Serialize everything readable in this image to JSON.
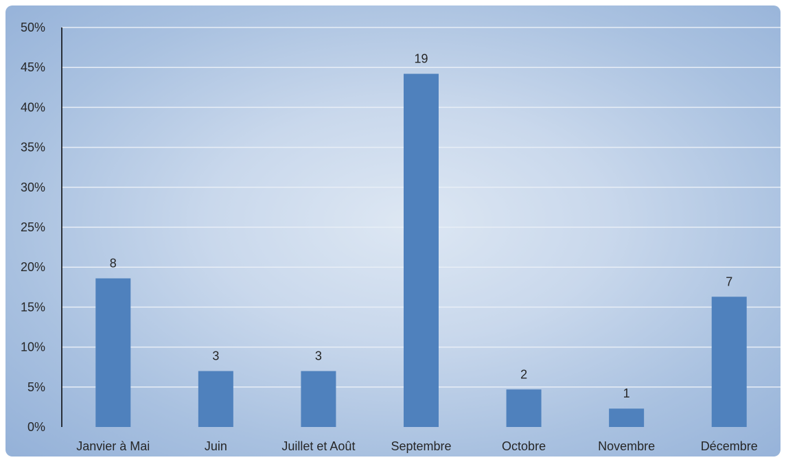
{
  "chart_data": {
    "type": "bar",
    "categories": [
      "Janvier à Mai",
      "Juin",
      "Juillet et Août",
      "Septembre",
      "Octobre",
      "Novembre",
      "Décembre"
    ],
    "values": [
      18.6,
      7.0,
      7.0,
      44.2,
      4.7,
      2.3,
      16.3
    ],
    "data_labels": [
      "8",
      "3",
      "3",
      "19",
      "2",
      "1",
      "7"
    ],
    "y_ticks": [
      "0%",
      "5%",
      "10%",
      "15%",
      "20%",
      "25%",
      "30%",
      "35%",
      "40%",
      "45%",
      "50%"
    ],
    "ylim": [
      0,
      50
    ],
    "grid": true,
    "legend": "none",
    "colors": {
      "bar": "#4f81bd",
      "grid": "#e8eef6",
      "axis": "#000000",
      "text": "#262626"
    }
  }
}
